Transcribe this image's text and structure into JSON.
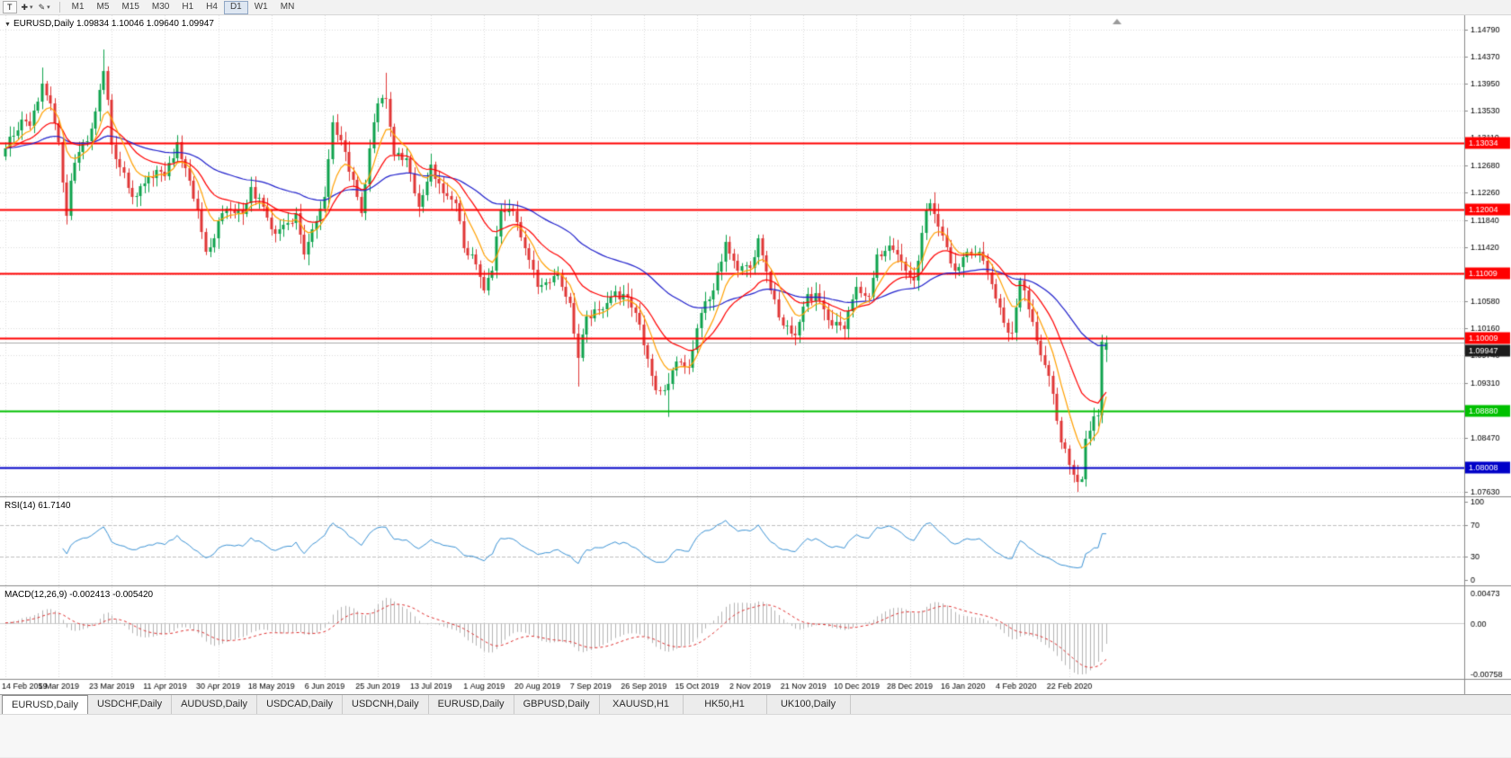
{
  "toolbar": {
    "text_tool_label": "T",
    "timeframes": [
      {
        "label": "M1"
      },
      {
        "label": "M5"
      },
      {
        "label": "M15"
      },
      {
        "label": "M30"
      },
      {
        "label": "H1"
      },
      {
        "label": "H4"
      },
      {
        "label": "D1"
      },
      {
        "label": "W1"
      },
      {
        "label": "MN"
      }
    ],
    "active_timeframe": "D1"
  },
  "chart": {
    "header_symbol": "EURUSD,Daily",
    "header_ohlc": "1.09834 1.10046 1.09640 1.09947"
  },
  "chart_data": {
    "type": "candlestick",
    "title": "EURUSD,Daily",
    "symbol": "EURUSD",
    "timeframe": "Daily",
    "x_dates": [
      "14 Feb 2019",
      "5 Mar 2019",
      "23 Mar 2019",
      "11 Apr 2019",
      "30 Apr 2019",
      "18 May 2019",
      "6 Jun 2019",
      "25 Jun 2019",
      "13 Jul 2019",
      "1 Aug 2019",
      "20 Aug 2019",
      "7 Sep 2019",
      "26 Sep 2019",
      "15 Oct 2019",
      "2 Nov 2019",
      "21 Nov 2019",
      "10 Dec 2019",
      "28 Dec 2019",
      "16 Jan 2020",
      "4 Feb 2020",
      "22 Feb 2020"
    ],
    "y_ticks": [
      "1.14790",
      "1.14370",
      "1.13950",
      "1.13530",
      "1.13110",
      "1.12680",
      "1.12260",
      "1.11840",
      "1.11420",
      "1.11000",
      "1.10580",
      "1.10160",
      "1.09740",
      "1.09310",
      "1.08880",
      "1.08470",
      "1.08050",
      "1.07630"
    ],
    "price_axis_range": [
      1.0756,
      1.1501
    ],
    "candle_count": 269,
    "waypoints": [
      [
        0,
        1.1295
      ],
      [
        2,
        1.1315
      ],
      [
        4,
        1.134
      ],
      [
        6,
        1.133
      ],
      [
        9,
        1.1395
      ],
      [
        11,
        1.1365
      ],
      [
        13,
        1.1305
      ],
      [
        15,
        1.119
      ],
      [
        16,
        1.1245
      ],
      [
        18,
        1.129
      ],
      [
        21,
        1.1325
      ],
      [
        23,
        1.1385
      ],
      [
        24,
        1.1415
      ],
      [
        25,
        1.137
      ],
      [
        26,
        1.13
      ],
      [
        28,
        1.1265
      ],
      [
        31,
        1.122
      ],
      [
        34,
        1.124
      ],
      [
        37,
        1.1262
      ],
      [
        39,
        1.1252
      ],
      [
        42,
        1.1305
      ],
      [
        45,
        1.1245
      ],
      [
        47,
        1.12
      ],
      [
        49,
        1.1135
      ],
      [
        51,
        1.1155
      ],
      [
        53,
        1.1195
      ],
      [
        55,
        1.12
      ],
      [
        58,
        1.1193
      ],
      [
        60,
        1.1235
      ],
      [
        63,
        1.1205
      ],
      [
        66,
        1.1163
      ],
      [
        69,
        1.118
      ],
      [
        71,
        1.1195
      ],
      [
        73,
        1.113
      ],
      [
        75,
        1.117
      ],
      [
        78,
        1.122
      ],
      [
        80,
        1.1335
      ],
      [
        83,
        1.129
      ],
      [
        86,
        1.122
      ],
      [
        87,
        1.1195
      ],
      [
        89,
        1.1295
      ],
      [
        91,
        1.1365
      ],
      [
        93,
        1.1372
      ],
      [
        95,
        1.1285
      ],
      [
        98,
        1.128
      ],
      [
        101,
        1.1205
      ],
      [
        104,
        1.127
      ],
      [
        107,
        1.1225
      ],
      [
        110,
        1.121
      ],
      [
        112,
        1.114
      ],
      [
        114,
        1.113
      ],
      [
        117,
        1.1075
      ],
      [
        119,
        1.1105
      ],
      [
        121,
        1.12
      ],
      [
        124,
        1.1197
      ],
      [
        127,
        1.114
      ],
      [
        130,
        1.108
      ],
      [
        133,
        1.1087
      ],
      [
        135,
        1.11
      ],
      [
        138,
        1.1055
      ],
      [
        140,
        1.097
      ],
      [
        142,
        1.1035
      ],
      [
        145,
        1.1045
      ],
      [
        148,
        1.1065
      ],
      [
        151,
        1.107
      ],
      [
        154,
        1.104
      ],
      [
        156,
        1.099
      ],
      [
        159,
        1.092
      ],
      [
        162,
        1.093
      ],
      [
        164,
        1.0965
      ],
      [
        167,
        1.0955
      ],
      [
        170,
        1.104
      ],
      [
        173,
        1.1075
      ],
      [
        176,
        1.115
      ],
      [
        179,
        1.1105
      ],
      [
        182,
        1.111
      ],
      [
        184,
        1.1155
      ],
      [
        187,
        1.1075
      ],
      [
        190,
        1.102
      ],
      [
        193,
        1.1005
      ],
      [
        196,
        1.107
      ],
      [
        199,
        1.106
      ],
      [
        202,
        1.102
      ],
      [
        205,
        1.1015
      ],
      [
        208,
        1.108
      ],
      [
        211,
        1.1065
      ],
      [
        213,
        1.113
      ],
      [
        216,
        1.1145
      ],
      [
        219,
        1.112
      ],
      [
        222,
        1.109
      ],
      [
        225,
        1.12
      ],
      [
        226,
        1.121
      ],
      [
        229,
        1.116
      ],
      [
        232,
        1.1105
      ],
      [
        235,
        1.1135
      ],
      [
        238,
        1.1135
      ],
      [
        241,
        1.1085
      ],
      [
        244,
        1.1025
      ],
      [
        246,
        1.101
      ],
      [
        248,
        1.109
      ],
      [
        250,
        1.1045
      ],
      [
        253,
        1.0975
      ],
      [
        256,
        1.0915
      ],
      [
        258,
        1.084
      ],
      [
        261,
        1.079
      ],
      [
        263,
        1.0782
      ],
      [
        264,
        1.0845
      ],
      [
        266,
        1.088
      ],
      [
        267,
        1.0881
      ],
      [
        268,
        1.0995
      ]
    ],
    "wick_overrides": [
      {
        "i": 9,
        "high": 1.142
      },
      {
        "i": 15,
        "low": 1.1177
      },
      {
        "i": 24,
        "high": 1.1448
      },
      {
        "i": 93,
        "high": 1.1412
      },
      {
        "i": 140,
        "low": 1.0926
      },
      {
        "i": 162,
        "low": 1.0879
      },
      {
        "i": 263,
        "low": 1.0778
      }
    ],
    "last_bar": {
      "open": 1.09834,
      "high": 1.10046,
      "low": 1.0964,
      "close": 1.09947
    },
    "hlines": [
      {
        "price": 1.13034,
        "label": "1.13034",
        "color": "#FF0000"
      },
      {
        "price": 1.12004,
        "label": "1.12004",
        "color": "#FF0000"
      },
      {
        "price": 1.11009,
        "label": "1.11009",
        "color": "#FF0000"
      },
      {
        "price": 1.10009,
        "label": "1.10009",
        "color": "#FF0000"
      },
      {
        "price": 1.0888,
        "label": "1.08880",
        "color": "#00C000"
      },
      {
        "price": 1.08008,
        "label": "1.08008",
        "color": "#0000C8"
      }
    ],
    "bid_line": {
      "price": 1.09947,
      "label": "1.09947",
      "box_color": "#1C1C1C"
    },
    "moving_averages": [
      {
        "period": 55,
        "color": "#2121CC"
      },
      {
        "period": 20,
        "color": "#FF0000"
      },
      {
        "period": 8,
        "color": "#FFA000"
      }
    ],
    "colors": {
      "up": "#0EA34D",
      "down": "#E03636",
      "grid": "#DADADA",
      "bid_line": "#ABABAB",
      "axis_text": "#000000",
      "separator": "#888888"
    },
    "indicators": {
      "rsi": {
        "label": "RSI(14)",
        "value_text": "61.7140",
        "period": 14,
        "levels": [
          30,
          70
        ],
        "scale": [
          "100",
          "70",
          "30",
          "0"
        ],
        "color": "#3C93D5"
      },
      "macd": {
        "label": "MACD(12,26,9)",
        "value_text": "-0.002413 -0.005420",
        "fast": 12,
        "slow": 26,
        "signal": 9,
        "scale_labels": [
          "0.00473",
          "0.00",
          "-0.00758"
        ],
        "range": [
          -0.00758,
          0.00473
        ],
        "hist_color": "#B4B4B4",
        "signal_color": "#E03030"
      }
    }
  },
  "tabs": {
    "items": [
      {
        "label": "EURUSD,Daily",
        "active": true
      },
      {
        "label": "USDCHF,Daily",
        "active": false
      },
      {
        "label": "AUDUSD,Daily",
        "active": false
      },
      {
        "label": "USDCAD,Daily",
        "active": false
      },
      {
        "label": "USDCNH,Daily",
        "active": false
      },
      {
        "label": "EURUSD,Daily",
        "active": false
      },
      {
        "label": "GBPUSD,Daily",
        "active": false
      },
      {
        "label": "XAUUSD,H1",
        "active": false
      },
      {
        "label": "HK50,H1",
        "active": false
      },
      {
        "label": "UK100,Daily",
        "active": false
      }
    ]
  }
}
